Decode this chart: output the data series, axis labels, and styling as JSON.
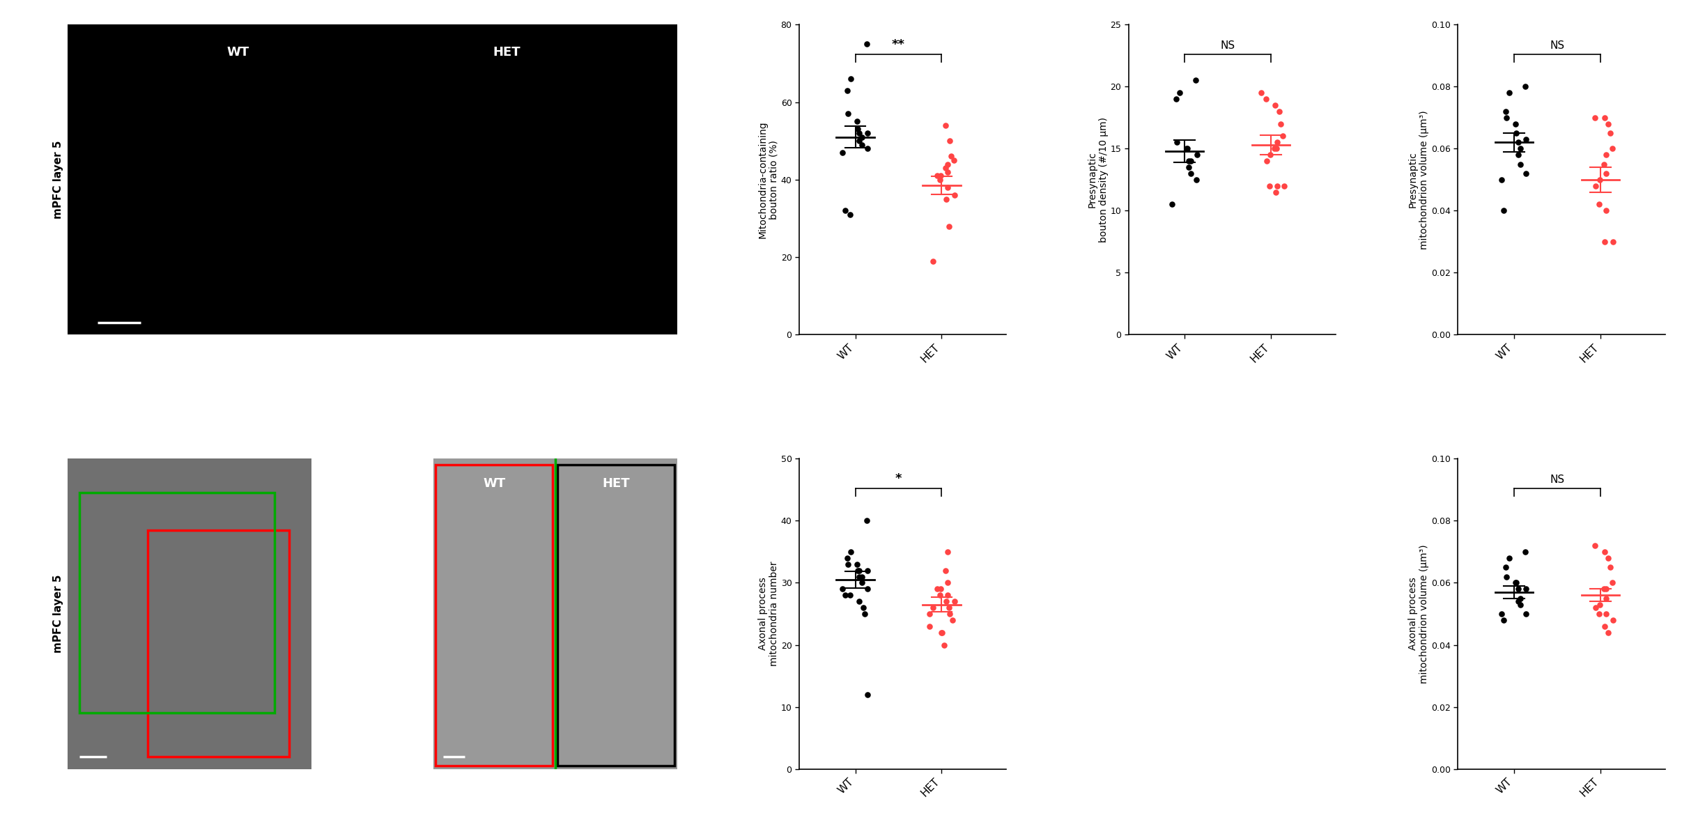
{
  "plot1": {
    "ylabel": "Mitochondria-containing\nbouton ratio (%)",
    "ylim": [
      0,
      80
    ],
    "yticks": [
      0,
      20,
      40,
      60,
      80
    ],
    "sig": "**",
    "wt": [
      75,
      66,
      63,
      57,
      55,
      53,
      52,
      52,
      51,
      50,
      49,
      48,
      47,
      32,
      31
    ],
    "het": [
      54,
      50,
      46,
      45,
      44,
      43,
      42,
      41,
      41,
      40,
      38,
      36,
      35,
      28,
      19
    ],
    "wt_mean": 51.0,
    "wt_sem": 2.8,
    "het_mean": 38.5,
    "het_sem": 2.4
  },
  "plot2": {
    "ylabel": "Presynaptic\nbouton density (#/10 μm)",
    "ylim": [
      0,
      25
    ],
    "yticks": [
      0,
      5,
      10,
      15,
      20,
      25
    ],
    "sig": "NS",
    "wt": [
      20.5,
      19.5,
      19.0,
      15.5,
      15.0,
      15.0,
      14.5,
      14.0,
      14.0,
      13.5,
      13.0,
      12.5,
      10.5
    ],
    "het": [
      19.5,
      19.0,
      18.5,
      18.0,
      17.0,
      16.0,
      15.5,
      15.0,
      15.0,
      14.5,
      14.0,
      12.0,
      12.0,
      12.0,
      11.5
    ],
    "wt_mean": 14.8,
    "wt_sem": 0.9,
    "het_mean": 15.3,
    "het_sem": 0.8
  },
  "plot3": {
    "ylabel": "Presynaptic\nmitochondrion volume (μm³)",
    "ylim": [
      0,
      0.1
    ],
    "yticks": [
      0,
      0.02,
      0.04,
      0.06,
      0.08,
      0.1
    ],
    "sig": "NS",
    "wt": [
      0.08,
      0.078,
      0.072,
      0.07,
      0.068,
      0.065,
      0.063,
      0.062,
      0.06,
      0.058,
      0.055,
      0.052,
      0.05,
      0.04
    ],
    "het": [
      0.07,
      0.07,
      0.068,
      0.065,
      0.06,
      0.058,
      0.055,
      0.052,
      0.05,
      0.048,
      0.042,
      0.04,
      0.03,
      0.03
    ],
    "wt_mean": 0.062,
    "wt_sem": 0.003,
    "het_mean": 0.05,
    "het_sem": 0.004
  },
  "plot4": {
    "ylabel": "Axonal process\nmitochondria number",
    "ylim": [
      0,
      50
    ],
    "yticks": [
      0,
      10,
      20,
      30,
      40,
      50
    ],
    "sig": "*",
    "wt": [
      40,
      35,
      34,
      33,
      33,
      32,
      32,
      32,
      31,
      31,
      30,
      29,
      29,
      28,
      28,
      27,
      26,
      25,
      12
    ],
    "het": [
      35,
      32,
      30,
      29,
      29,
      28,
      28,
      27,
      27,
      26,
      26,
      25,
      25,
      24,
      23,
      22,
      22,
      20
    ],
    "wt_mean": 30.5,
    "wt_sem": 1.3,
    "het_mean": 26.5,
    "het_sem": 1.2
  },
  "plot5": {
    "ylabel": "Axonal process\nmitochondrion volume (μm³)",
    "ylim": [
      0,
      0.1
    ],
    "yticks": [
      0,
      0.02,
      0.04,
      0.06,
      0.08,
      0.1
    ],
    "sig": "NS",
    "wt": [
      0.07,
      0.068,
      0.065,
      0.062,
      0.06,
      0.06,
      0.058,
      0.058,
      0.055,
      0.054,
      0.053,
      0.05,
      0.05,
      0.048
    ],
    "het": [
      0.072,
      0.07,
      0.068,
      0.065,
      0.06,
      0.058,
      0.058,
      0.055,
      0.053,
      0.052,
      0.05,
      0.05,
      0.048,
      0.046,
      0.044
    ],
    "wt_mean": 0.057,
    "wt_sem": 0.002,
    "het_mean": 0.056,
    "het_sem": 0.002
  },
  "wt_color": "#000000",
  "het_color": "#FF4444",
  "dot_size": 38,
  "font_size": 10,
  "tick_font_size": 9,
  "mpfc_label": "mPFC layer 5"
}
